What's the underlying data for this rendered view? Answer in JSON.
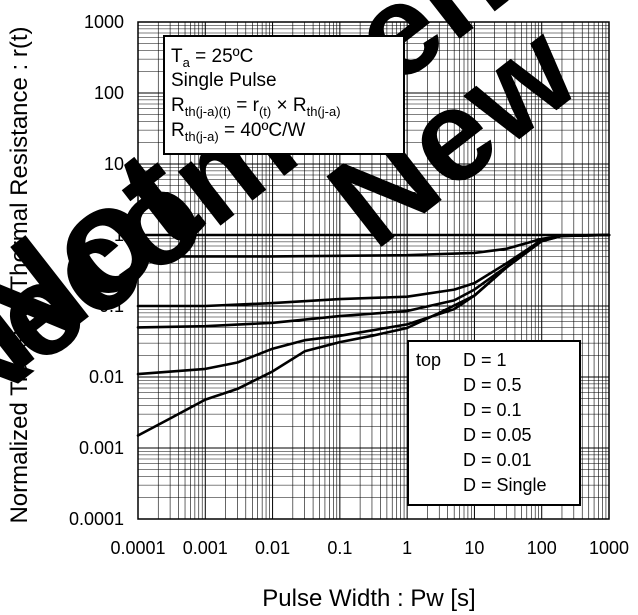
{
  "watermark": "Not Recommended for New Designs",
  "chart_data": {
    "type": "line",
    "xscale": "log",
    "yscale": "log",
    "xlabel": "Pulse Width : Pw [s]",
    "ylabel": "Normalized Transient Thermal Resistance : r(t)",
    "xlim": [
      0.0001,
      1000
    ],
    "ylim": [
      0.0001,
      1000
    ],
    "x_ticks": [
      "0.0001",
      "0.001",
      "0.01",
      "0.1",
      "1",
      "10",
      "100",
      "1000"
    ],
    "y_ticks": [
      "0.0001",
      "0.001",
      "0.01",
      "0.1",
      "1",
      "10",
      "100",
      "1000"
    ],
    "grid": true,
    "conditions": {
      "line1": "Ta = 25ºC",
      "line2": "Single Pulse",
      "line3": "Rth(j-a)(t) = r(t) × Rth(j-a)",
      "line4": "Rth(j-a) = 40ºC/W"
    },
    "legend": {
      "prefix": "top",
      "entries": [
        "D = 1",
        "D = 0.5",
        "D = 0.1",
        "D = 0.05",
        "D = 0.01",
        "D = Single"
      ]
    },
    "series": [
      {
        "name": "D = 1",
        "points": [
          [
            0.0001,
            1
          ],
          [
            1000,
            1
          ]
        ]
      },
      {
        "name": "D = 0.5",
        "points": [
          [
            0.0001,
            0.5
          ],
          [
            0.01,
            0.5
          ],
          [
            1,
            0.52
          ],
          [
            10,
            0.56
          ],
          [
            30,
            0.64
          ],
          [
            100,
            0.88
          ],
          [
            200,
            0.98
          ],
          [
            1000,
            1
          ]
        ]
      },
      {
        "name": "D = 0.1",
        "points": [
          [
            0.0001,
            0.1
          ],
          [
            0.001,
            0.1
          ],
          [
            0.01,
            0.11
          ],
          [
            0.1,
            0.125
          ],
          [
            1,
            0.135
          ],
          [
            5,
            0.17
          ],
          [
            10,
            0.21
          ],
          [
            30,
            0.4
          ],
          [
            100,
            0.85
          ],
          [
            200,
            0.98
          ],
          [
            1000,
            1
          ]
        ]
      },
      {
        "name": "D = 0.05",
        "points": [
          [
            0.0001,
            0.05
          ],
          [
            0.001,
            0.052
          ],
          [
            0.01,
            0.058
          ],
          [
            0.1,
            0.072
          ],
          [
            1,
            0.085
          ],
          [
            5,
            0.12
          ],
          [
            10,
            0.17
          ],
          [
            30,
            0.36
          ],
          [
            100,
            0.83
          ],
          [
            200,
            0.97
          ],
          [
            1000,
            1
          ]
        ]
      },
      {
        "name": "D = 0.01",
        "points": [
          [
            0.0001,
            0.011
          ],
          [
            0.001,
            0.013
          ],
          [
            0.003,
            0.016
          ],
          [
            0.01,
            0.025
          ],
          [
            0.03,
            0.033
          ],
          [
            0.1,
            0.038
          ],
          [
            1,
            0.055
          ],
          [
            5,
            0.09
          ],
          [
            10,
            0.14
          ],
          [
            30,
            0.35
          ],
          [
            100,
            0.82
          ],
          [
            200,
            0.97
          ],
          [
            1000,
            1
          ]
        ]
      },
      {
        "name": "D = Single",
        "points": [
          [
            0.0001,
            0.0015
          ],
          [
            0.0003,
            0.0026
          ],
          [
            0.001,
            0.0048
          ],
          [
            0.003,
            0.0068
          ],
          [
            0.01,
            0.012
          ],
          [
            0.03,
            0.023
          ],
          [
            0.1,
            0.031
          ],
          [
            0.3,
            0.038
          ],
          [
            1,
            0.049
          ],
          [
            3,
            0.08
          ],
          [
            10,
            0.14
          ],
          [
            30,
            0.35
          ],
          [
            100,
            0.82
          ],
          [
            200,
            0.97
          ],
          [
            1000,
            1
          ]
        ]
      }
    ]
  }
}
